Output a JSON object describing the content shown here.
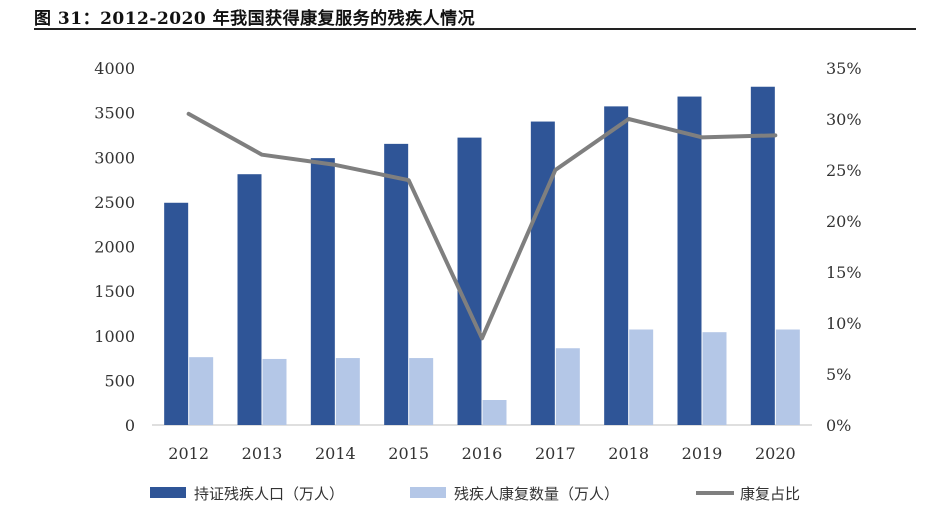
{
  "title": "图 31：2012-2020 年我国获得康复服务的残疾人情况",
  "chart_data": {
    "type": "bar",
    "categories": [
      "2012",
      "2013",
      "2014",
      "2015",
      "2016",
      "2017",
      "2018",
      "2019",
      "2020"
    ],
    "series": [
      {
        "name": "持证残疾人口（万人）",
        "type": "bar",
        "axis": "left",
        "color": "#2F5597",
        "values": [
          2490,
          2810,
          2990,
          3150,
          3220,
          3400,
          3570,
          3680,
          3790
        ]
      },
      {
        "name": "残疾人康复数量（万人）",
        "type": "bar",
        "axis": "left",
        "color": "#B4C7E7",
        "values": [
          760,
          740,
          750,
          750,
          280,
          860,
          1070,
          1040,
          1070
        ]
      },
      {
        "name": "康复占比",
        "type": "line",
        "axis": "right",
        "color": "#7F7F7F",
        "values": [
          30.5,
          26.5,
          25.5,
          24.0,
          8.5,
          25.0,
          30.0,
          28.2,
          28.4
        ]
      }
    ],
    "yleft": {
      "min": 0,
      "max": 4000,
      "step": 500,
      "ticks": [
        "0",
        "500",
        "1000",
        "1500",
        "2000",
        "2500",
        "3000",
        "3500",
        "4000"
      ]
    },
    "yright": {
      "min": 0,
      "max": 35,
      "step": 5,
      "ticks": [
        "0%",
        "5%",
        "10%",
        "15%",
        "20%",
        "25%",
        "30%",
        "35%"
      ]
    },
    "grid": false,
    "legend": "bottom"
  }
}
